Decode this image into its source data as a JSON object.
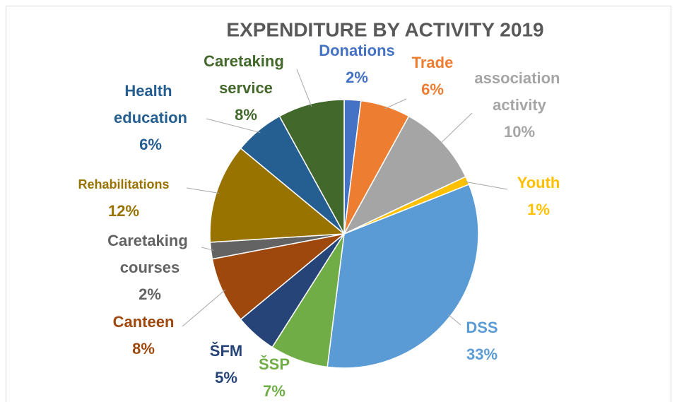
{
  "chart_data": {
    "type": "pie",
    "title": "EXPENDITURE BY ACTIVITY 2019",
    "categories": [
      "Donations",
      "Trade",
      "association activity",
      "Youth",
      "DSS",
      "ŠSP",
      "ŠFM",
      "Canteen",
      "Caretaking courses",
      "Rehabilitations",
      "Health education",
      "Caretaking service"
    ],
    "values": [
      2,
      6,
      10,
      1,
      33,
      7,
      5,
      8,
      2,
      12,
      6,
      8
    ],
    "value_labels": [
      "2%",
      "6%",
      "10%",
      "1%",
      "33%",
      "7%",
      "5%",
      "8%",
      "2%",
      "12%",
      "6%",
      "8%"
    ],
    "colors": [
      "#4472c4",
      "#ed7d31",
      "#a5a5a5",
      "#ffc000",
      "#5b9bd5",
      "#70ad47",
      "#264478",
      "#9e480e",
      "#636363",
      "#997300",
      "#255e91",
      "#43682b"
    ]
  }
}
